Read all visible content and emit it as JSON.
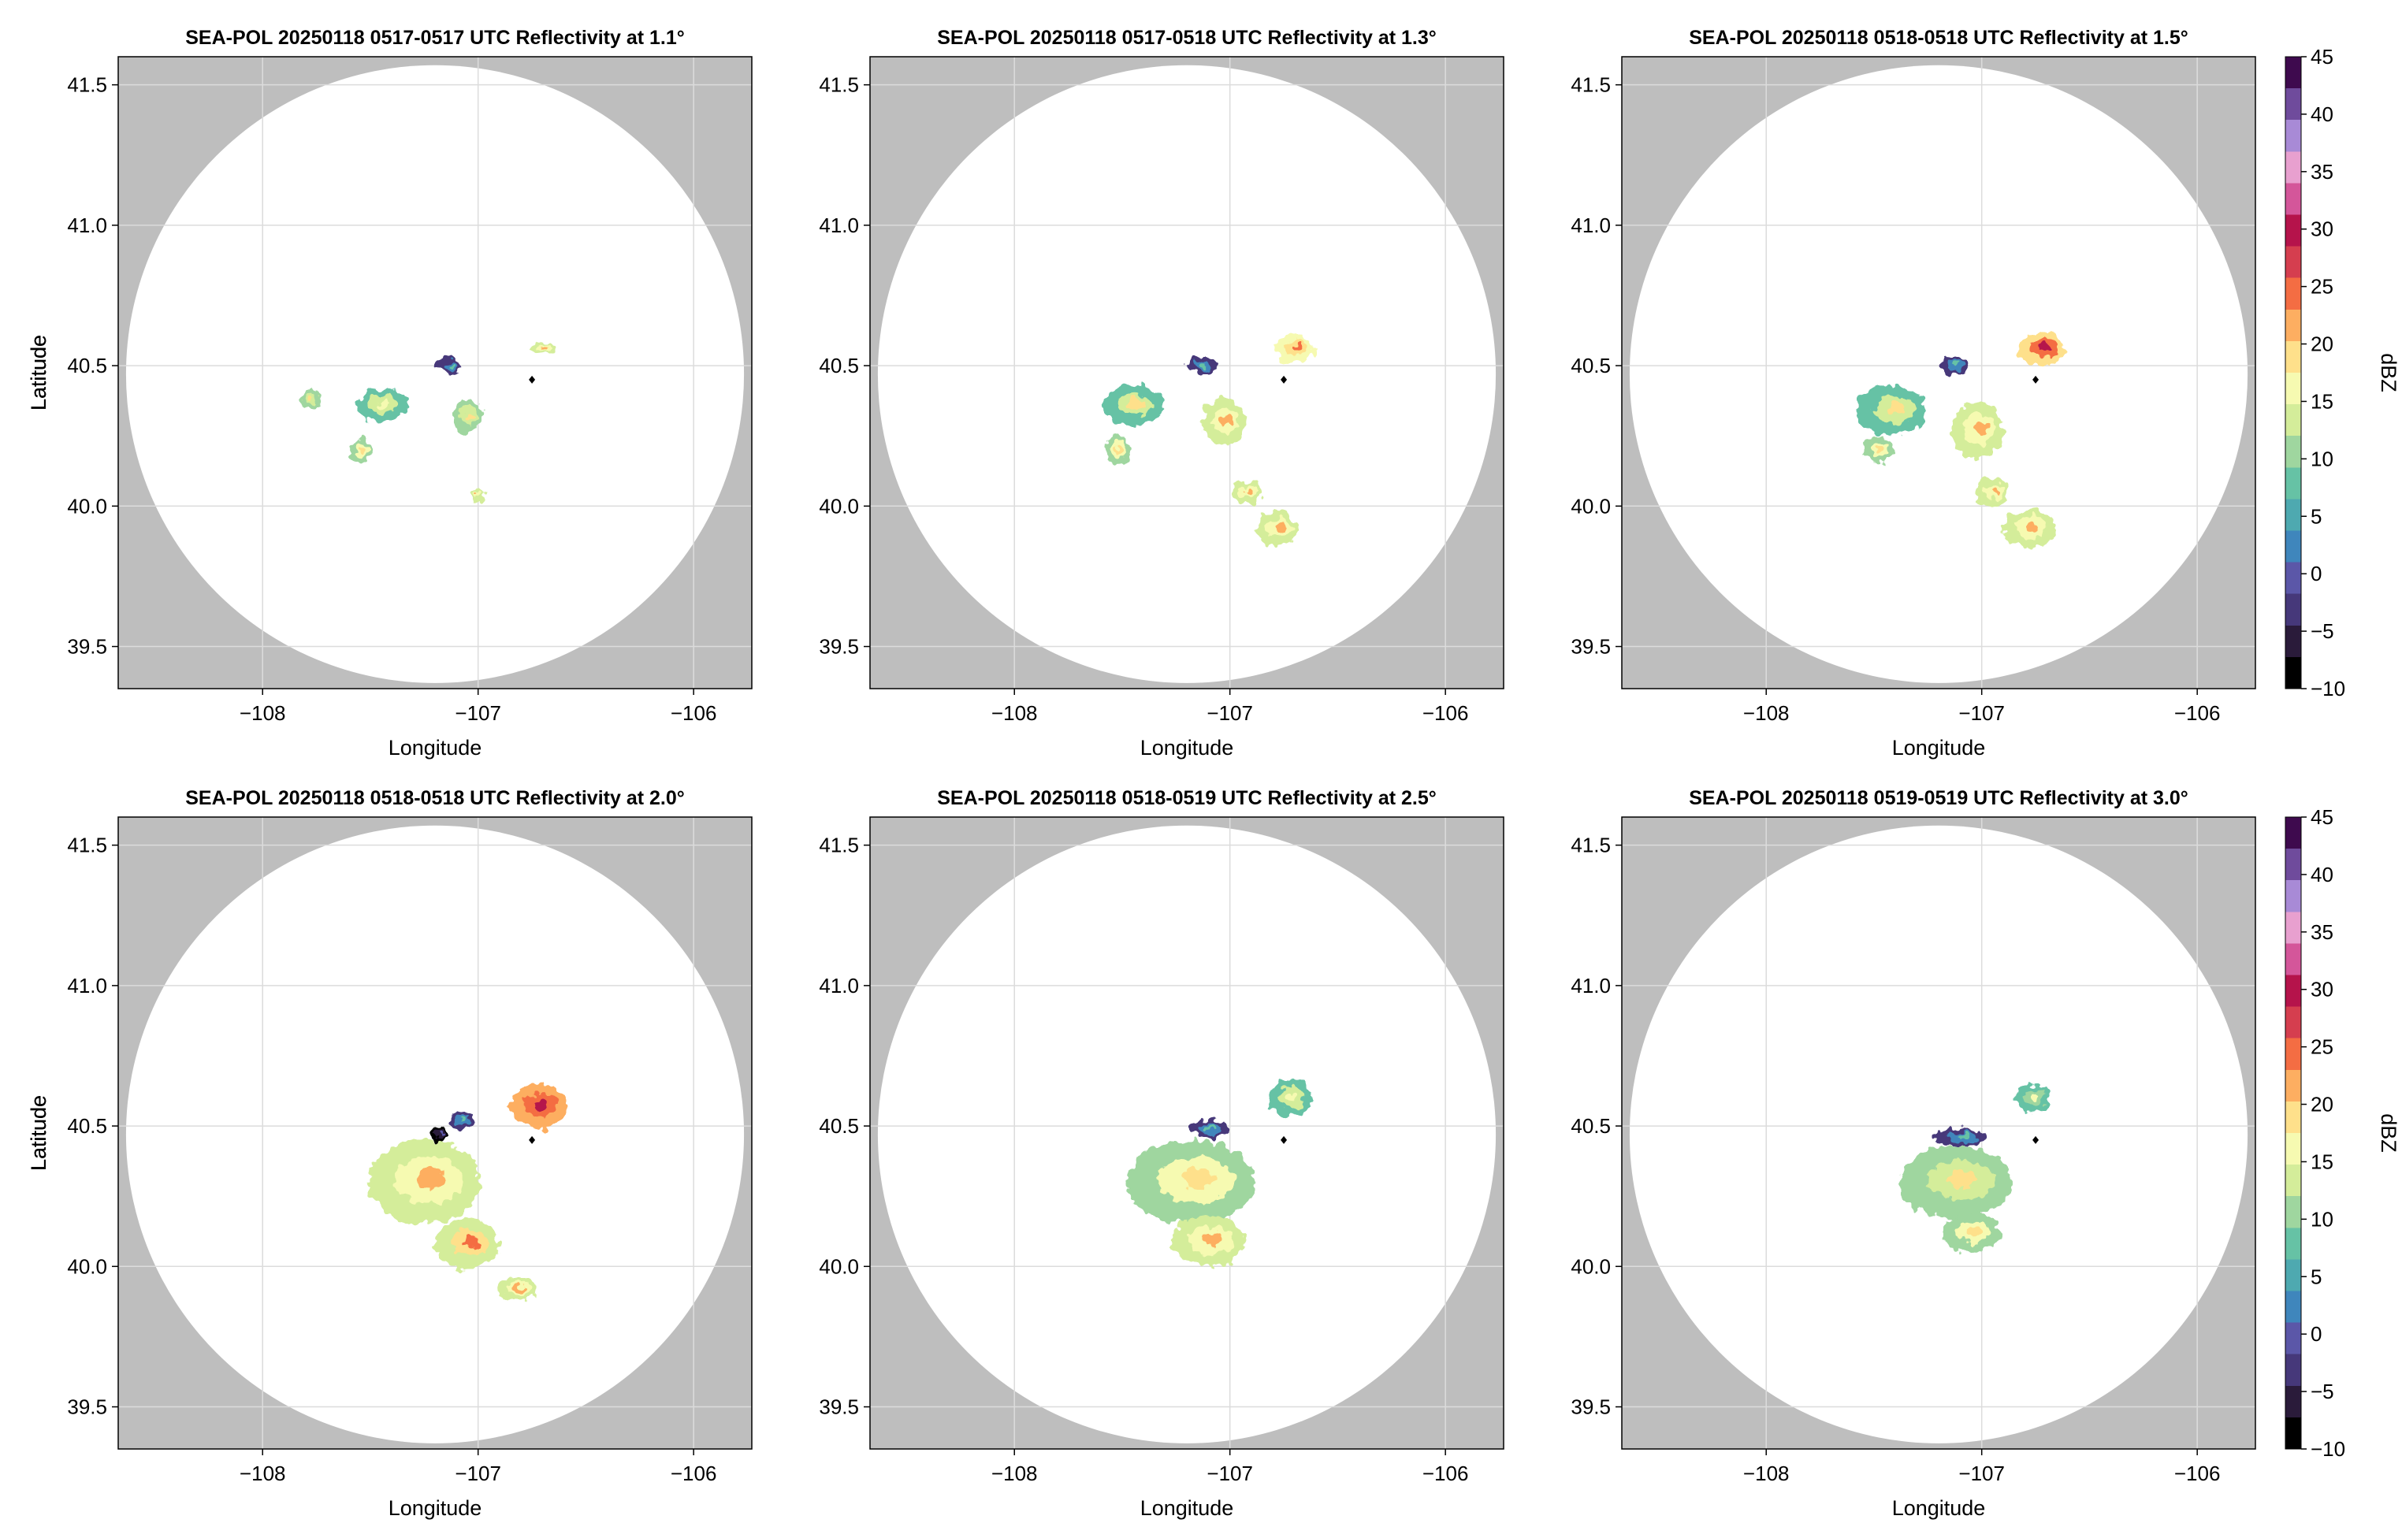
{
  "figure": {
    "colorbar_label": "dBZ",
    "colorbar_ticks": [
      -10,
      -5,
      0,
      5,
      10,
      15,
      20,
      25,
      30,
      35,
      40,
      45
    ],
    "colors": {
      "outside_range": "#bebebe",
      "inside_range": "#ffffff",
      "grid": "#dcdcdc",
      "radar_marker": "#000000"
    },
    "colormap": [
      "#000000",
      "#2a1b3a",
      "#46387a",
      "#5b57a8",
      "#3f86bc",
      "#4ea9b0",
      "#66c2a5",
      "#9fd69f",
      "#d4ed9a",
      "#f6fab1",
      "#fee08b",
      "#fdae61",
      "#f46d43",
      "#d53e4f",
      "#b5134b",
      "#d4569a",
      "#e8a0cf",
      "#a88ad6",
      "#6f4b9c",
      "#3e0a4e"
    ]
  },
  "chart_data": [
    {
      "type": "heatmap",
      "title": "SEA-POL 20250118 0517-0517 UTC Reflectivity at 1.1°",
      "xlabel": "Longitude",
      "ylabel": "Latitude",
      "xlim": [
        -108.67,
        -105.73
      ],
      "ylim": [
        39.35,
        41.6
      ],
      "xticks": [
        -108,
        -107,
        -106
      ],
      "yticks": [
        39.5,
        40.0,
        40.5,
        41.0,
        41.5
      ],
      "xtick_labels": [
        "−108",
        "−107",
        "−106"
      ],
      "ytick_labels": [
        "39.5",
        "40.0",
        "40.5",
        "41.0",
        "41.5"
      ],
      "radar_center": {
        "lon": -107.2,
        "lat": 40.47,
        "range_deg_lat": 1.1
      },
      "radar_marker": {
        "lon": -106.75,
        "lat": 40.45
      },
      "echoes": [
        {
          "lon": -107.45,
          "lat": 40.36,
          "rlon": 0.12,
          "rlat": 0.06,
          "dbz": 12
        },
        {
          "lon": -107.05,
          "lat": 40.32,
          "rlon": 0.07,
          "rlat": 0.06,
          "dbz": 14
        },
        {
          "lon": -107.55,
          "lat": 40.2,
          "rlon": 0.05,
          "rlat": 0.04,
          "dbz": 15
        },
        {
          "lon": -107.78,
          "lat": 40.38,
          "rlon": 0.04,
          "rlat": 0.04,
          "dbz": 14
        },
        {
          "lon": -106.7,
          "lat": 40.56,
          "rlon": 0.06,
          "rlat": 0.02,
          "dbz": 17
        },
        {
          "lon": -107.13,
          "lat": 40.5,
          "rlon": 0.06,
          "rlat": 0.03,
          "dbz": 2
        },
        {
          "lon": -107.0,
          "lat": 40.04,
          "rlon": 0.03,
          "rlat": 0.02,
          "dbz": 17
        }
      ]
    },
    {
      "type": "heatmap",
      "title": "SEA-POL 20250118 0517-0518 UTC Reflectivity at 1.3°",
      "xlabel": "Longitude",
      "ylabel": "Latitude",
      "xlim": [
        -108.67,
        -105.73
      ],
      "ylim": [
        39.35,
        41.6
      ],
      "xticks": [
        -108,
        -107,
        -106
      ],
      "yticks": [
        39.5,
        40.0,
        40.5,
        41.0,
        41.5
      ],
      "xtick_labels": [
        "−108",
        "−107",
        "−106"
      ],
      "ytick_labels": [
        "39.5",
        "40.0",
        "40.5",
        "41.0",
        "41.5"
      ],
      "radar_center": {
        "lon": -107.2,
        "lat": 40.47,
        "range_deg_lat": 1.1
      },
      "radar_marker": {
        "lon": -106.75,
        "lat": 40.45
      },
      "echoes": [
        {
          "lon": -107.45,
          "lat": 40.36,
          "rlon": 0.14,
          "rlat": 0.07,
          "dbz": 13
        },
        {
          "lon": -107.03,
          "lat": 40.3,
          "rlon": 0.1,
          "rlat": 0.08,
          "dbz": 16
        },
        {
          "lon": -107.52,
          "lat": 40.2,
          "rlon": 0.06,
          "rlat": 0.05,
          "dbz": 15
        },
        {
          "lon": -106.7,
          "lat": 40.56,
          "rlon": 0.09,
          "rlat": 0.05,
          "dbz": 20
        },
        {
          "lon": -106.92,
          "lat": 40.05,
          "rlon": 0.07,
          "rlat": 0.04,
          "dbz": 16
        },
        {
          "lon": -106.78,
          "lat": 39.92,
          "rlon": 0.1,
          "rlat": 0.06,
          "dbz": 17
        },
        {
          "lon": -107.13,
          "lat": 40.5,
          "rlon": 0.07,
          "rlat": 0.03,
          "dbz": 2
        }
      ]
    },
    {
      "type": "heatmap",
      "title": "SEA-POL 20250118 0518-0518 UTC Reflectivity at 1.5°",
      "xlabel": "Longitude",
      "ylabel": "Latitude",
      "xlim": [
        -108.67,
        -105.73
      ],
      "ylim": [
        39.35,
        41.6
      ],
      "xticks": [
        -108,
        -107,
        -106
      ],
      "yticks": [
        39.5,
        40.0,
        40.5,
        41.0,
        41.5
      ],
      "xtick_labels": [
        "−108",
        "−107",
        "−106"
      ],
      "ytick_labels": [
        "39.5",
        "40.0",
        "40.5",
        "41.0",
        "41.5"
      ],
      "radar_center": {
        "lon": -107.2,
        "lat": 40.47,
        "range_deg_lat": 1.1
      },
      "radar_marker": {
        "lon": -106.75,
        "lat": 40.45
      },
      "echoes": [
        {
          "lon": -107.42,
          "lat": 40.34,
          "rlon": 0.16,
          "rlat": 0.09,
          "dbz": 13
        },
        {
          "lon": -107.02,
          "lat": 40.27,
          "rlon": 0.12,
          "rlat": 0.1,
          "dbz": 17
        },
        {
          "lon": -107.48,
          "lat": 40.2,
          "rlon": 0.07,
          "rlat": 0.05,
          "dbz": 15
        },
        {
          "lon": -106.72,
          "lat": 40.56,
          "rlon": 0.11,
          "rlat": 0.06,
          "dbz": 24
        },
        {
          "lon": -106.95,
          "lat": 40.05,
          "rlon": 0.08,
          "rlat": 0.05,
          "dbz": 16
        },
        {
          "lon": -106.78,
          "lat": 39.92,
          "rlon": 0.12,
          "rlat": 0.07,
          "dbz": 17
        },
        {
          "lon": -107.13,
          "lat": 40.5,
          "rlon": 0.07,
          "rlat": 0.03,
          "dbz": 2
        }
      ]
    },
    {
      "type": "heatmap",
      "title": "SEA-POL 20250118 0518-0518 UTC Reflectivity at 2.0°",
      "xlabel": "Longitude",
      "ylabel": "Latitude",
      "xlim": [
        -108.67,
        -105.73
      ],
      "ylim": [
        39.35,
        41.6
      ],
      "xticks": [
        -108,
        -107,
        -106
      ],
      "yticks": [
        39.5,
        40.0,
        40.5,
        41.0,
        41.5
      ],
      "xtick_labels": [
        "−108",
        "−107",
        "−106"
      ],
      "ytick_labels": [
        "39.5",
        "40.0",
        "40.5",
        "41.0",
        "41.5"
      ],
      "radar_center": {
        "lon": -107.2,
        "lat": 40.47,
        "range_deg_lat": 1.1
      },
      "radar_marker": {
        "lon": -106.75,
        "lat": 40.45
      },
      "echoes": [
        {
          "lon": -107.25,
          "lat": 40.3,
          "rlon": 0.26,
          "rlat": 0.15,
          "dbz": 16
        },
        {
          "lon": -107.05,
          "lat": 40.08,
          "rlon": 0.15,
          "rlat": 0.09,
          "dbz": 18
        },
        {
          "lon": -106.72,
          "lat": 40.57,
          "rlon": 0.13,
          "rlat": 0.08,
          "dbz": 25
        },
        {
          "lon": -106.82,
          "lat": 39.92,
          "rlon": 0.1,
          "rlat": 0.04,
          "dbz": 17
        },
        {
          "lon": -107.08,
          "lat": 40.52,
          "rlon": 0.06,
          "rlat": 0.03,
          "dbz": 2
        },
        {
          "lon": -107.18,
          "lat": 40.47,
          "rlon": 0.03,
          "rlat": 0.03,
          "dbz": -5
        }
      ]
    },
    {
      "type": "heatmap",
      "title": "SEA-POL 20250118 0518-0519 UTC Reflectivity at 2.5°",
      "xlabel": "Longitude",
      "ylabel": "Latitude",
      "xlim": [
        -108.67,
        -105.73
      ],
      "ylim": [
        39.35,
        41.6
      ],
      "xticks": [
        -108,
        -107,
        -106
      ],
      "yticks": [
        39.5,
        40.0,
        40.5,
        41.0,
        41.5
      ],
      "xtick_labels": [
        "−108",
        "−107",
        "−106"
      ],
      "ytick_labels": [
        "39.5",
        "40.0",
        "40.5",
        "41.0",
        "41.5"
      ],
      "radar_center": {
        "lon": -107.2,
        "lat": 40.47,
        "range_deg_lat": 1.1
      },
      "radar_marker": {
        "lon": -106.75,
        "lat": 40.45
      },
      "echoes": [
        {
          "lon": -107.18,
          "lat": 40.3,
          "rlon": 0.3,
          "rlat": 0.15,
          "dbz": 15
        },
        {
          "lon": -107.1,
          "lat": 40.09,
          "rlon": 0.17,
          "rlat": 0.09,
          "dbz": 17
        },
        {
          "lon": -106.72,
          "lat": 40.6,
          "rlon": 0.1,
          "rlat": 0.07,
          "dbz": 12
        },
        {
          "lon": -107.1,
          "lat": 40.49,
          "rlon": 0.1,
          "rlat": 0.03,
          "dbz": 2
        }
      ]
    },
    {
      "type": "heatmap",
      "title": "SEA-POL 20250118 0519-0519 UTC Reflectivity at 3.0°",
      "xlabel": "Longitude",
      "ylabel": "Latitude",
      "xlim": [
        -108.67,
        -105.73
      ],
      "ylim": [
        39.35,
        41.6
      ],
      "xticks": [
        -108,
        -107,
        -106
      ],
      "yticks": [
        39.5,
        40.0,
        40.5,
        41.0,
        41.5
      ],
      "xtick_labels": [
        "−108",
        "−107",
        "−106"
      ],
      "ytick_labels": [
        "39.5",
        "40.0",
        "40.5",
        "41.0",
        "41.5"
      ],
      "radar_center": {
        "lon": -107.2,
        "lat": 40.47,
        "range_deg_lat": 1.1
      },
      "radar_marker": {
        "lon": -106.75,
        "lat": 40.45
      },
      "echoes": [
        {
          "lon": -107.12,
          "lat": 40.3,
          "rlon": 0.26,
          "rlat": 0.13,
          "dbz": 14
        },
        {
          "lon": -107.05,
          "lat": 40.12,
          "rlon": 0.13,
          "rlat": 0.07,
          "dbz": 15
        },
        {
          "lon": -106.76,
          "lat": 40.6,
          "rlon": 0.08,
          "rlat": 0.05,
          "dbz": 11
        },
        {
          "lon": -107.1,
          "lat": 40.46,
          "rlon": 0.12,
          "rlat": 0.03,
          "dbz": 2
        }
      ]
    }
  ]
}
